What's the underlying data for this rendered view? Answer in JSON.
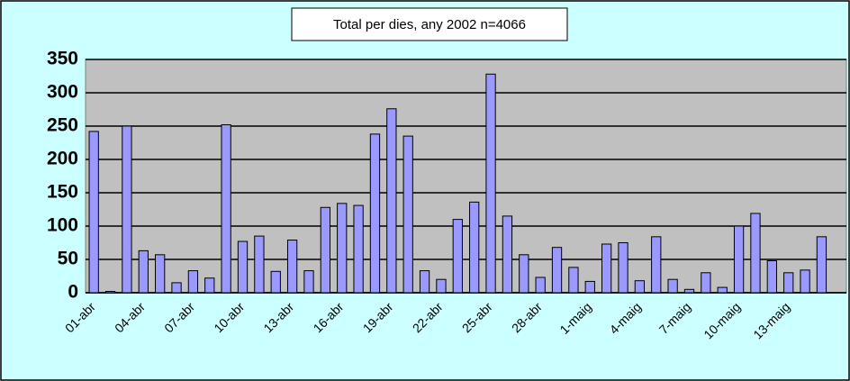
{
  "chart_data": {
    "type": "bar",
    "title": "Total per dies, any 2002 n=4066",
    "categories": [
      "01-abr",
      null,
      null,
      "04-abr",
      null,
      null,
      "07-abr",
      null,
      null,
      "10-abr",
      null,
      null,
      "13-abr",
      null,
      null,
      "16-abr",
      null,
      null,
      "19-abr",
      null,
      null,
      "22-abr",
      null,
      null,
      "25-abr",
      null,
      null,
      "28-abr",
      null,
      null,
      "1-maig",
      null,
      null,
      "4-maig",
      null,
      null,
      "7-maig",
      null,
      null,
      "10-maig",
      null,
      null,
      "13-maig",
      null,
      null,
      null
    ],
    "values": [
      242,
      2,
      250,
      63,
      57,
      15,
      33,
      22,
      252,
      77,
      85,
      32,
      79,
      33,
      128,
      134,
      131,
      238,
      276,
      235,
      33,
      20,
      110,
      136,
      328,
      115,
      57,
      23,
      68,
      38,
      17,
      73,
      75,
      18,
      84,
      20,
      5,
      30,
      8,
      100,
      119,
      48,
      30,
      34,
      84,
      null
    ],
    "color": "#9999ff",
    "ylim": [
      0,
      350
    ],
    "yticks": [
      0,
      50,
      100,
      150,
      200,
      250,
      300,
      350
    ],
    "grid": true
  }
}
